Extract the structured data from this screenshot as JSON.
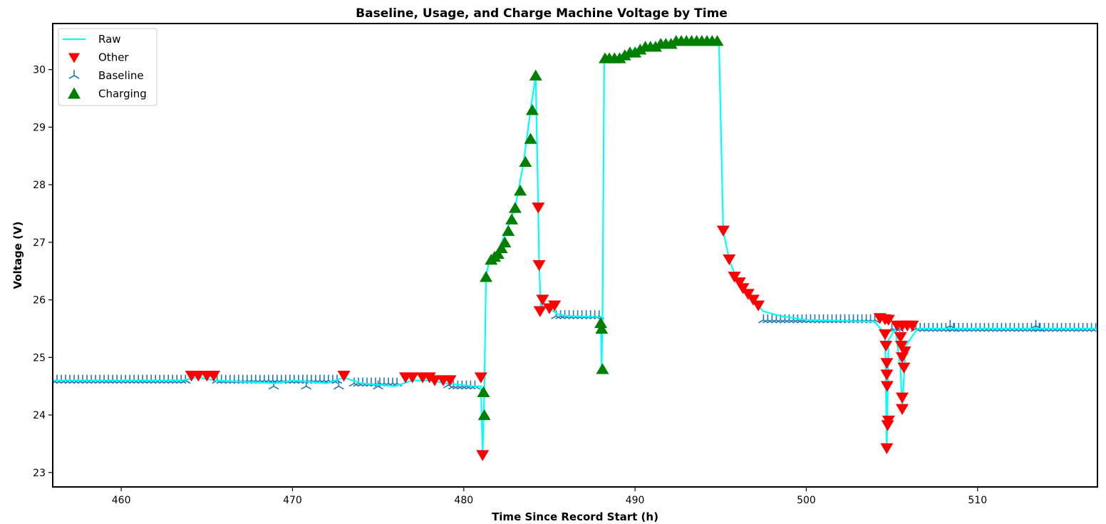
{
  "chart_data": {
    "type": "line",
    "title": "Baseline, Usage, and Charge Machine Voltage by Time",
    "xlabel": "Time Since Record Start (h)",
    "ylabel": "Voltage (V)",
    "xlim": [
      456,
      517
    ],
    "ylim": [
      22.75,
      30.8
    ],
    "xticks": [
      460,
      470,
      480,
      490,
      500,
      510
    ],
    "yticks": [
      23,
      24,
      25,
      26,
      27,
      28,
      29,
      30
    ],
    "grid": false,
    "legend_position": "top-left",
    "legend": [
      "Raw",
      "Other",
      "Baseline",
      "Charging"
    ],
    "colors": {
      "raw": "#00ffff",
      "other": "#ff0000",
      "baseline": "#1f77b4",
      "charging": "#008000"
    },
    "series": [
      {
        "name": "Raw",
        "style": "line",
        "points": [
          [
            456,
            24.6
          ],
          [
            463.5,
            24.6
          ],
          [
            464.5,
            24.65
          ],
          [
            465.5,
            24.6
          ],
          [
            469,
            24.55
          ],
          [
            470,
            24.6
          ],
          [
            472,
            24.55
          ],
          [
            473,
            24.65
          ],
          [
            474,
            24.55
          ],
          [
            476,
            24.5
          ],
          [
            477,
            24.6
          ],
          [
            478,
            24.6
          ],
          [
            479,
            24.55
          ],
          [
            480.5,
            24.5
          ],
          [
            481.0,
            24.5
          ],
          [
            481.1,
            23.3
          ],
          [
            481.2,
            24.4
          ],
          [
            481.3,
            26.4
          ],
          [
            481.5,
            26.7
          ],
          [
            482.0,
            26.85
          ],
          [
            482.5,
            27.2
          ],
          [
            483.0,
            27.6
          ],
          [
            483.5,
            28.4
          ],
          [
            483.9,
            29.3
          ],
          [
            484.2,
            29.9
          ],
          [
            484.35,
            27.6
          ],
          [
            484.4,
            26.6
          ],
          [
            484.5,
            25.9
          ],
          [
            485.0,
            25.85
          ],
          [
            485.5,
            25.75
          ],
          [
            486,
            25.72
          ],
          [
            488.0,
            25.7
          ],
          [
            488.05,
            24.8
          ],
          [
            488.1,
            25.6
          ],
          [
            488.2,
            30.2
          ],
          [
            489,
            30.22
          ],
          [
            489.5,
            30.3
          ],
          [
            490,
            30.35
          ],
          [
            490.5,
            30.4
          ],
          [
            491.5,
            30.45
          ],
          [
            492.5,
            30.5
          ],
          [
            494.9,
            30.5
          ],
          [
            495.15,
            27.2
          ],
          [
            495.5,
            26.7
          ],
          [
            496,
            26.3
          ],
          [
            496.5,
            26.1
          ],
          [
            497,
            25.95
          ],
          [
            497.5,
            25.8
          ],
          [
            498.5,
            25.72
          ],
          [
            500,
            25.65
          ],
          [
            504,
            25.62
          ],
          [
            504.6,
            25.4
          ],
          [
            504.7,
            23.4
          ],
          [
            504.8,
            25.3
          ],
          [
            505.2,
            25.5
          ],
          [
            505.5,
            24.8
          ],
          [
            505.6,
            24.1
          ],
          [
            505.8,
            25.2
          ],
          [
            506.5,
            25.5
          ],
          [
            517,
            25.5
          ]
        ]
      },
      {
        "name": "Other",
        "style": "triangle_down",
        "points": [
          [
            464.1,
            24.68
          ],
          [
            464.5,
            24.68
          ],
          [
            465.0,
            24.68
          ],
          [
            465.4,
            24.68
          ],
          [
            473.0,
            24.68
          ],
          [
            476.6,
            24.65
          ],
          [
            477.0,
            24.65
          ],
          [
            477.6,
            24.65
          ],
          [
            478.0,
            24.65
          ],
          [
            478.3,
            24.6
          ],
          [
            478.8,
            24.6
          ],
          [
            479.2,
            24.6
          ],
          [
            481.0,
            24.65
          ],
          [
            481.1,
            23.3
          ],
          [
            484.35,
            27.6
          ],
          [
            484.4,
            26.6
          ],
          [
            484.45,
            25.8
          ],
          [
            484.6,
            26.0
          ],
          [
            485.0,
            25.85
          ],
          [
            485.3,
            25.9
          ],
          [
            495.15,
            27.2
          ],
          [
            495.5,
            26.7
          ],
          [
            495.8,
            26.4
          ],
          [
            496.1,
            26.3
          ],
          [
            496.3,
            26.2
          ],
          [
            496.6,
            26.1
          ],
          [
            496.9,
            26.0
          ],
          [
            497.2,
            25.9
          ],
          [
            504.3,
            25.68
          ],
          [
            504.6,
            25.66
          ],
          [
            504.8,
            25.65
          ],
          [
            504.6,
            25.4
          ],
          [
            504.65,
            25.2
          ],
          [
            504.7,
            24.9
          ],
          [
            504.7,
            24.7
          ],
          [
            504.72,
            24.5
          ],
          [
            504.8,
            23.9
          ],
          [
            504.75,
            23.82
          ],
          [
            504.7,
            23.42
          ],
          [
            505.3,
            25.55
          ],
          [
            505.6,
            25.55
          ],
          [
            505.9,
            25.55
          ],
          [
            506.2,
            25.55
          ],
          [
            505.5,
            25.35
          ],
          [
            505.55,
            25.2
          ],
          [
            505.6,
            25.0
          ],
          [
            505.7,
            24.82
          ],
          [
            505.6,
            24.3
          ],
          [
            505.6,
            24.1
          ],
          [
            505.75,
            25.1
          ]
        ]
      },
      {
        "name": "Baseline",
        "style": "tri_up",
        "segments": [
          {
            "x_start": 456.0,
            "x_end": 463.8,
            "y": 24.6,
            "step": 0.25
          },
          {
            "x_start": 465.6,
            "x_end": 472.6,
            "y": 24.6,
            "step": 0.25
          },
          {
            "x_start": 473.6,
            "x_end": 476.2,
            "y": 24.55,
            "step": 0.25
          },
          {
            "x_start": 479.4,
            "x_end": 480.8,
            "y": 24.5,
            "step": 0.25
          },
          {
            "x_start": 485.4,
            "x_end": 487.9,
            "y": 25.72,
            "step": 0.25
          },
          {
            "x_start": 497.5,
            "x_end": 504.1,
            "y": 25.65,
            "step": 0.25
          },
          {
            "x_start": 505.0,
            "x_end": 505.4,
            "y": 25.5,
            "step": 0.2
          },
          {
            "x_start": 506.4,
            "x_end": 517.0,
            "y": 25.5,
            "step": 0.25
          }
        ],
        "extra_points": [
          [
            468.9,
            24.5
          ],
          [
            470.8,
            24.5
          ],
          [
            472.7,
            24.5
          ],
          [
            475.0,
            24.5
          ],
          [
            479.1,
            24.52
          ],
          [
            508.6,
            25.5
          ],
          [
            513.6,
            25.5
          ],
          [
            508.4,
            25.55
          ],
          [
            513.4,
            25.55
          ]
        ]
      },
      {
        "name": "Charging",
        "style": "triangle_up",
        "points": [
          [
            481.15,
            24.4
          ],
          [
            481.2,
            24.0
          ],
          [
            481.3,
            26.4
          ],
          [
            481.6,
            26.7
          ],
          [
            481.8,
            26.75
          ],
          [
            482.0,
            26.8
          ],
          [
            482.2,
            26.9
          ],
          [
            482.4,
            27.0
          ],
          [
            482.6,
            27.2
          ],
          [
            482.8,
            27.4
          ],
          [
            483.0,
            27.6
          ],
          [
            483.3,
            27.9
          ],
          [
            483.6,
            28.4
          ],
          [
            483.9,
            28.8
          ],
          [
            484.0,
            29.3
          ],
          [
            484.2,
            29.9
          ],
          [
            488.0,
            25.6
          ],
          [
            488.05,
            25.5
          ],
          [
            488.1,
            24.8
          ],
          [
            488.25,
            30.2
          ],
          [
            488.5,
            30.2
          ],
          [
            488.8,
            30.2
          ],
          [
            489.1,
            30.2
          ],
          [
            489.4,
            30.25
          ],
          [
            489.7,
            30.3
          ],
          [
            490.0,
            30.3
          ],
          [
            490.3,
            30.35
          ],
          [
            490.6,
            30.4
          ],
          [
            490.9,
            30.4
          ],
          [
            491.2,
            30.4
          ],
          [
            491.5,
            30.45
          ],
          [
            491.8,
            30.45
          ],
          [
            492.1,
            30.45
          ],
          [
            492.4,
            30.5
          ],
          [
            492.7,
            30.5
          ],
          [
            493.0,
            30.5
          ],
          [
            493.3,
            30.5
          ],
          [
            493.6,
            30.5
          ],
          [
            493.9,
            30.5
          ],
          [
            494.2,
            30.5
          ],
          [
            494.5,
            30.5
          ],
          [
            494.8,
            30.5
          ]
        ]
      }
    ]
  }
}
